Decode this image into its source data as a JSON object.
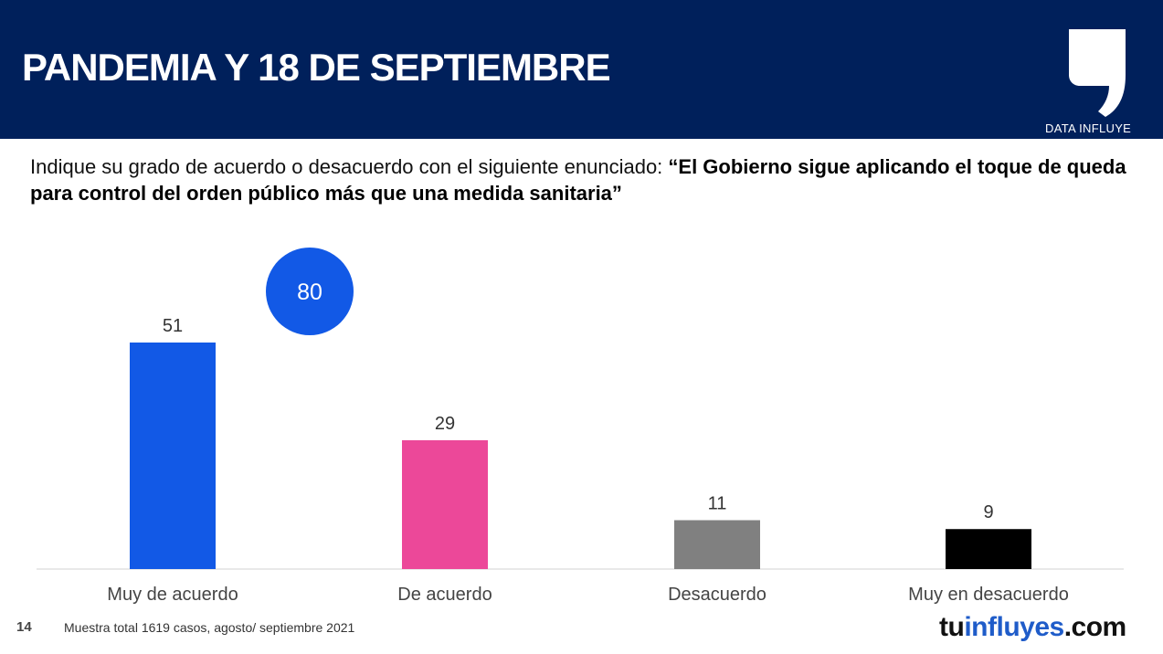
{
  "header": {
    "title": "PANDEMIA Y 18 DE SEPTIEMBRE",
    "logo_text": "DATA INFLUYE",
    "background": "#00205b"
  },
  "question": {
    "intro": "Indique su grado de acuerdo o desacuerdo con el siguiente enunciado: ",
    "statement": "“El Gobierno sigue aplicando el toque de queda para control del orden público más que una medida sanitaria”"
  },
  "chart_data": {
    "type": "bar",
    "categories": [
      "Muy de acuerdo",
      "De acuerdo",
      "Desacuerdo",
      "Muy en desacuerdo"
    ],
    "values": [
      51,
      29,
      11,
      9
    ],
    "colors": [
      "#1259e6",
      "#ec4899",
      "#808080",
      "#000000"
    ],
    "ylim": [
      0,
      51
    ],
    "grid": false,
    "annotation": {
      "value": "80",
      "color": "#1259e6",
      "label": "sum of Muy de acuerdo + De acuerdo"
    }
  },
  "footer": {
    "page_number": "14",
    "note": "Muestra total 1619 casos, agosto/ septiembre 2021",
    "brand_part1": "tu",
    "brand_part2": "influyes",
    "brand_part3": ".com"
  }
}
